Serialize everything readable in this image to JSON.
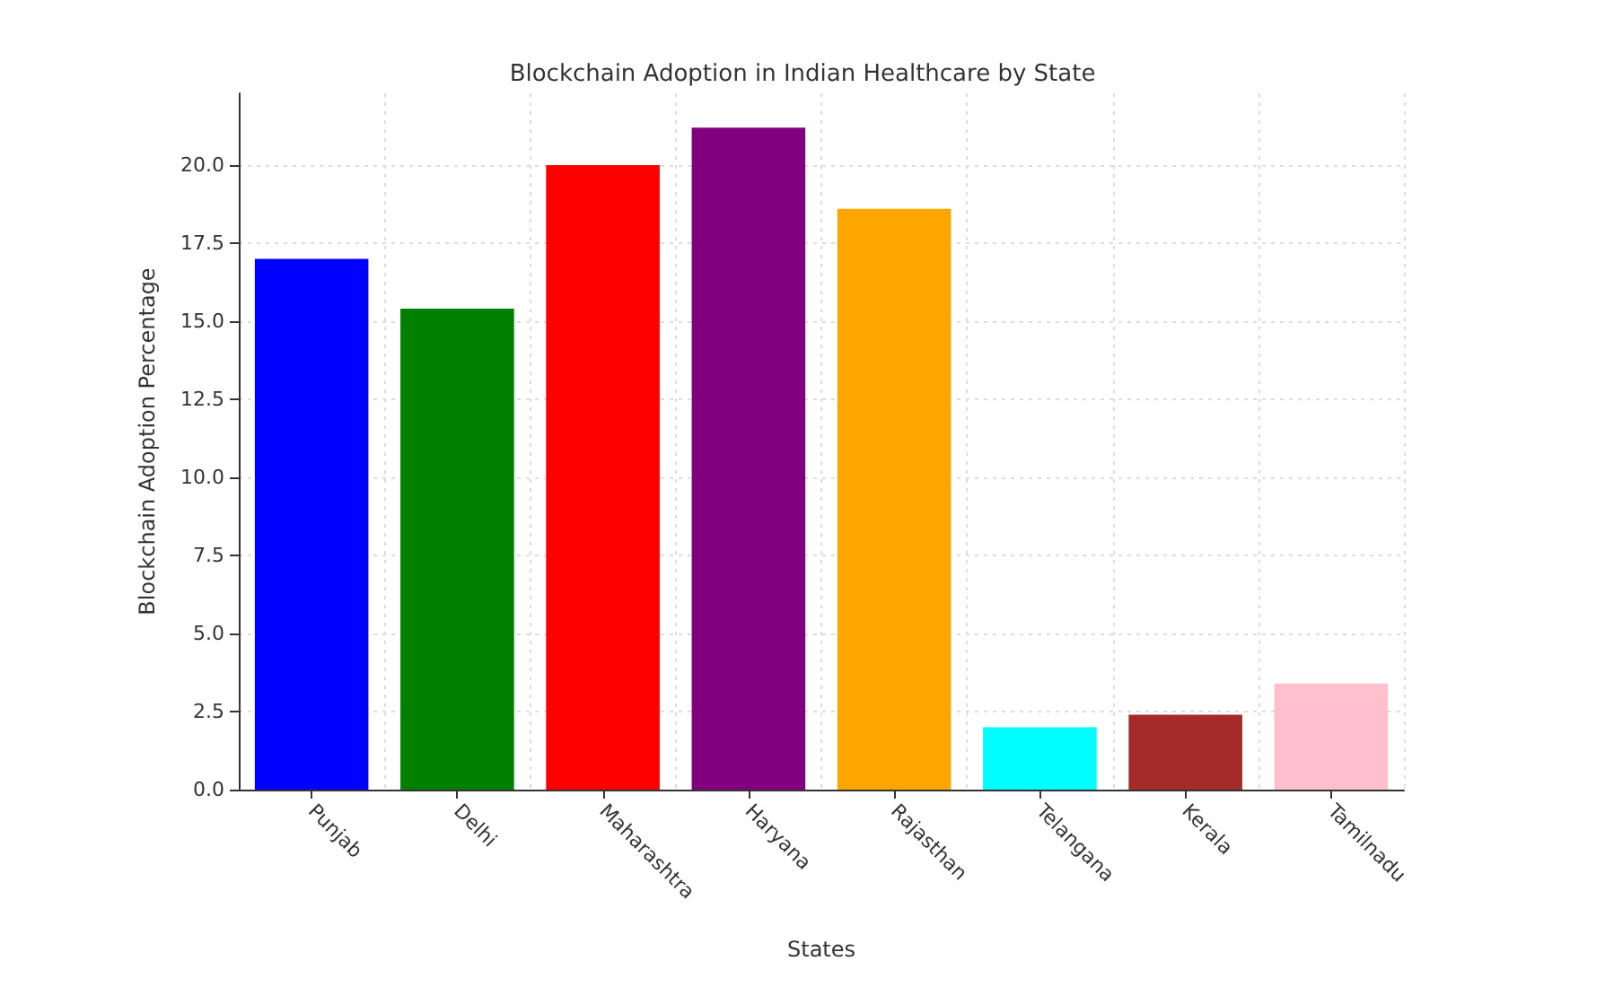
{
  "chart_data": {
    "type": "bar",
    "title": "Blockchain Adoption in Indian Healthcare by State",
    "xlabel": "States",
    "ylabel": "Blockchain Adoption Percentage",
    "categories": [
      "Punjab",
      "Delhi",
      "Maharashtra",
      "Haryana",
      "Rajasthan",
      "Telangana",
      "Kerala",
      "Tamilnadu"
    ],
    "values": [
      17.0,
      15.4,
      20.0,
      21.2,
      18.6,
      2.0,
      2.4,
      3.4
    ],
    "colors": [
      "#0000ff",
      "#008000",
      "#ff0000",
      "#800080",
      "#ffa500",
      "#00ffff",
      "#a52a2a",
      "#ffc0cb"
    ],
    "ylim": [
      0,
      22.3
    ],
    "yticks": [
      {
        "value": 0,
        "label": "0.0"
      },
      {
        "value": 2.5,
        "label": "2.5"
      },
      {
        "value": 5,
        "label": "5.0"
      },
      {
        "value": 7.5,
        "label": "7.5"
      },
      {
        "value": 10,
        "label": "10.0"
      },
      {
        "value": 12.5,
        "label": "12.5"
      },
      {
        "value": 15,
        "label": "15.0"
      },
      {
        "value": 17.5,
        "label": "17.5"
      },
      {
        "value": 20,
        "label": "20.0"
      }
    ],
    "grid": true
  }
}
